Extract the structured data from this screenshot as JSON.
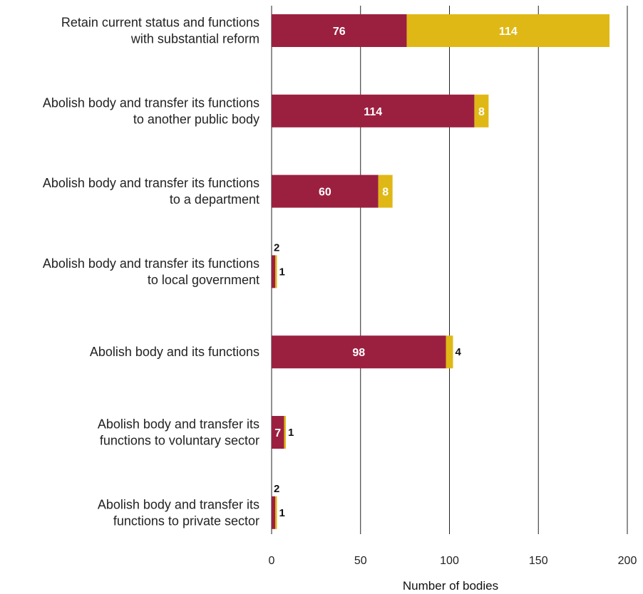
{
  "colors": {
    "series_a": "#9b2040",
    "series_b": "#e0b816",
    "grid": "#222222"
  },
  "chart_data": {
    "type": "bar",
    "orientation": "horizontal",
    "stacked": true,
    "title": "",
    "xlabel": "Number of bodies",
    "ylabel": "",
    "xlim": [
      0,
      200
    ],
    "xticks": [
      0,
      50,
      100,
      150,
      200
    ],
    "grid": true,
    "legend": "none",
    "categories": [
      [
        "Retain current status and functions",
        "with substantial reform"
      ],
      [
        "Abolish body and transfer its functions",
        "to another public body"
      ],
      [
        "Abolish body and transfer its functions",
        "to a department"
      ],
      [
        "Abolish body and transfer its functions",
        "to local government"
      ],
      [
        "Abolish body and its functions"
      ],
      [
        "Abolish body and transfer its",
        "functions to voluntary sector"
      ],
      [
        "Abolish body and transfer its",
        "functions to private sector"
      ]
    ],
    "series": [
      {
        "values": [
          76,
          114,
          60,
          2,
          98,
          7,
          2
        ]
      },
      {
        "values": [
          114,
          8,
          8,
          1,
          4,
          1,
          1
        ]
      }
    ]
  }
}
